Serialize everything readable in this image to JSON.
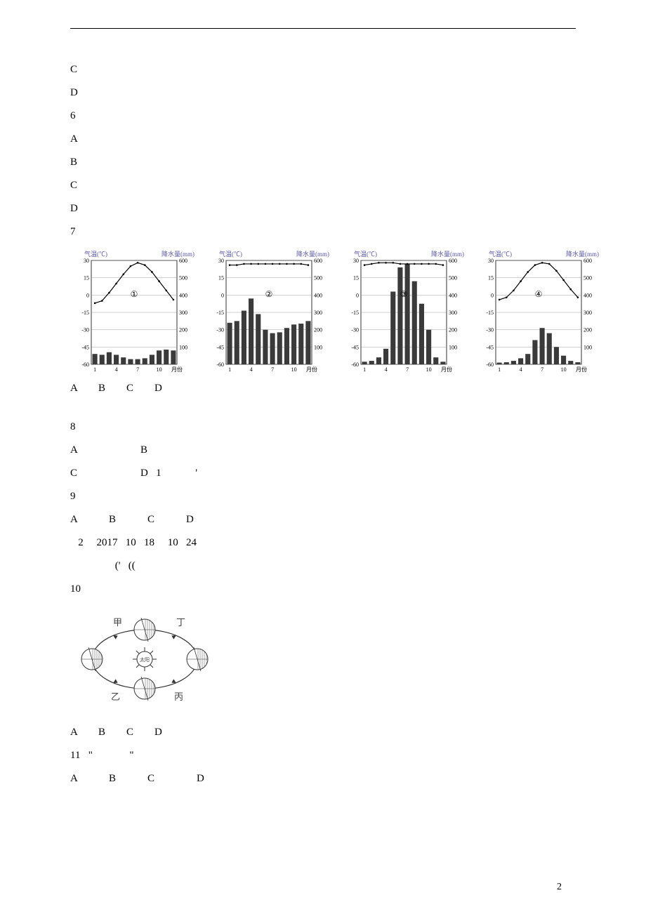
{
  "lines": {
    "c1": "C",
    "d1": "D",
    "q6": "6",
    "a2": "A",
    "b2": "B",
    "c2": "C",
    "d2": "D",
    "q7": "7",
    "opts7": "A        B        C        D",
    "q8": "8",
    "opts8a": "A                        B",
    "opts8b": "C                        D   1             '",
    "q9": "9",
    "opts9": "A            B            C            D",
    "material2": "   2     2017   10   18     10   24",
    "material2b": "                 ('   ((",
    "q10": "10",
    "opts10": "A        B        C        D",
    "q11": "11   \"              \"",
    "opts11": "A            B            C                D"
  },
  "charts": {
    "leftAxisLabel": "气温(℃)",
    "rightAxisLabel": "降水量(mm)",
    "xAxisLabel": "月份",
    "leftTicks": [
      "30",
      "15",
      "0",
      "-15",
      "-30",
      "-45",
      "-60"
    ],
    "rightTicks": [
      "600",
      "500",
      "400",
      "300",
      "200",
      "100",
      ""
    ],
    "xTicks": [
      "1",
      "4",
      "7",
      "10"
    ],
    "circledLabels": [
      "①",
      "②",
      "③",
      "④"
    ],
    "plotBg": "#ffffff",
    "barColor": "#3a3a3a",
    "lineColor": "#000000",
    "gridColor": "#888888",
    "axisColor": "#000000",
    "labelColor": "#5a5aa0",
    "tickFontsize": 8,
    "labelFontsize": 9,
    "panels": [
      {
        "id": 1,
        "temp": [
          -7,
          -5,
          2,
          10,
          18,
          25,
          28,
          26,
          20,
          12,
          4,
          -4
        ],
        "precip": [
          60,
          55,
          70,
          55,
          40,
          30,
          30,
          35,
          55,
          80,
          85,
          80
        ]
      },
      {
        "id": 2,
        "temp": [
          26,
          26,
          27,
          27,
          27,
          27,
          27,
          27,
          27,
          27,
          27,
          26
        ],
        "precip": [
          240,
          250,
          310,
          380,
          290,
          200,
          180,
          185,
          210,
          230,
          235,
          250
        ]
      },
      {
        "id": 3,
        "temp": [
          26,
          27,
          28,
          28,
          28,
          27,
          27,
          27,
          27,
          27,
          27,
          26
        ],
        "precip": [
          15,
          20,
          40,
          90,
          420,
          560,
          580,
          480,
          350,
          200,
          40,
          15
        ]
      },
      {
        "id": 4,
        "temp": [
          -4,
          -2,
          4,
          12,
          20,
          26,
          28,
          27,
          21,
          13,
          5,
          -2
        ],
        "precip": [
          10,
          12,
          20,
          35,
          60,
          140,
          210,
          180,
          100,
          50,
          20,
          12
        ]
      }
    ]
  },
  "orbit": {
    "labels": {
      "top": "甲",
      "right": "丁",
      "bottom_right": "丙",
      "bottom_left": "乙",
      "center": "太阳"
    },
    "hatchColor": "#555",
    "lineColor": "#333",
    "textColor": "#444",
    "fontsize": 13
  },
  "pageNumber": "2"
}
